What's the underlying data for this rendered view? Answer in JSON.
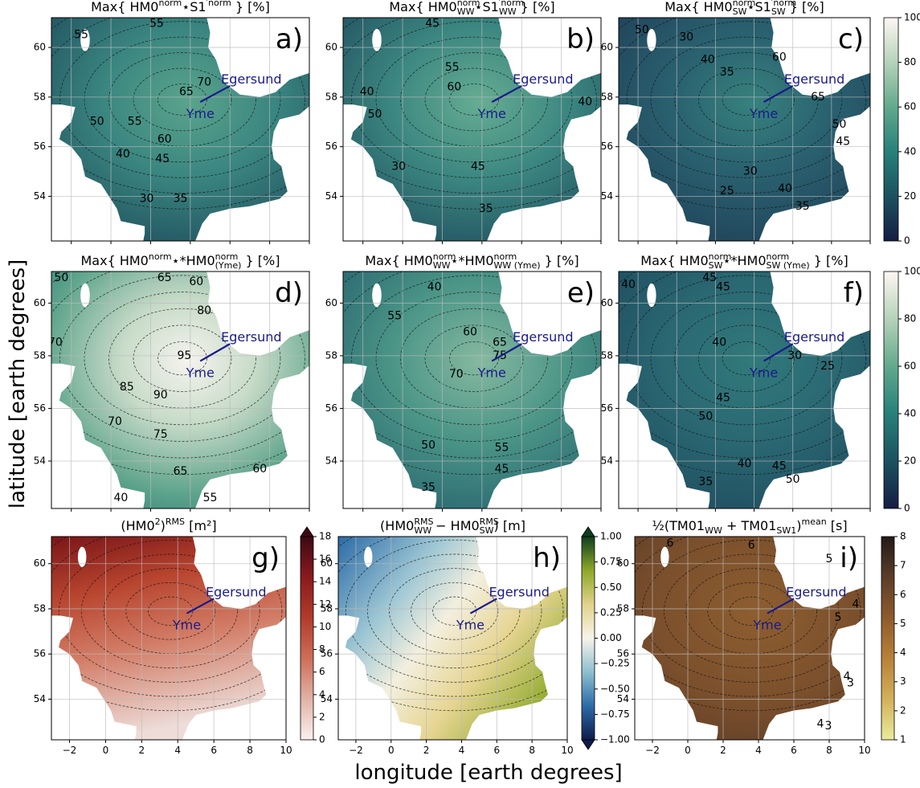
{
  "figure": {
    "xlabel": "longitude [earth degrees]",
    "ylabel": "latitude [earth degrees]",
    "xlim": [
      -3,
      10
    ],
    "ylim": [
      52.2,
      61.2
    ],
    "xticks": [
      {
        "value": -2,
        "label": "−2"
      },
      0,
      2,
      4,
      6,
      8,
      10
    ],
    "yticks": [
      54,
      56,
      58,
      60
    ],
    "grid": true,
    "sites": [
      "Egersund",
      "Yme"
    ],
    "panels": [
      {
        "label": "a)",
        "title": [
          {
            "text": "Max{ HM0"
          },
          {
            "text": "norm",
            "shift": "sup"
          },
          {
            "text": "⋆S1"
          },
          {
            "text": "′norm",
            "shift": "sup"
          },
          {
            "text": " } [%]"
          }
        ],
        "contour_labels": [
          55,
          55,
          65,
          70,
          50,
          55,
          60,
          45,
          40,
          35,
          30
        ]
      },
      {
        "label": "b)",
        "title": [
          {
            "text": "Max{ HM0"
          },
          {
            "text": "norm",
            "shift": "sup"
          },
          {
            "text": "WW",
            "shift": "sub"
          },
          {
            "text": "⋆S1"
          },
          {
            "text": "′norm",
            "shift": "sup"
          },
          {
            "text": "WW",
            "shift": "sub"
          },
          {
            "text": " } [%]"
          }
        ],
        "contour_labels": [
          45,
          55,
          60,
          40,
          50,
          45,
          35,
          30,
          40
        ]
      },
      {
        "label": "c)",
        "title": [
          {
            "text": "Max{ HM0"
          },
          {
            "text": "norm",
            "shift": "sup"
          },
          {
            "text": "SW",
            "shift": "sub"
          },
          {
            "text": "⋆S1"
          },
          {
            "text": "′norm",
            "shift": "sup"
          },
          {
            "text": "SW",
            "shift": "sub"
          },
          {
            "text": " } [%]"
          }
        ],
        "contour_labels": [
          50,
          30,
          40,
          35,
          60,
          65,
          50,
          45,
          30,
          25,
          40,
          35
        ]
      },
      {
        "label": "d)",
        "title": [
          {
            "text": "Max{ HM0"
          },
          {
            "text": "norm",
            "shift": "sup"
          },
          {
            "text": "⋆*HM0"
          },
          {
            "text": "norm",
            "shift": "sup"
          },
          {
            "text": "(Yme)",
            "shift": "sub"
          },
          {
            "text": " } [%]"
          }
        ],
        "contour_labels": [
          50,
          65,
          60,
          80,
          95,
          70,
          85,
          90,
          70,
          75,
          65,
          60,
          55,
          40
        ]
      },
      {
        "label": "e)",
        "title": [
          {
            "text": "Max{ HM0"
          },
          {
            "text": "norm",
            "shift": "sup"
          },
          {
            "text": "WW",
            "shift": "sub"
          },
          {
            "text": "⋆*HM0"
          },
          {
            "text": "norm",
            "shift": "sup"
          },
          {
            "text": "WW (Yme)",
            "shift": "sub"
          },
          {
            "text": " } [%]"
          }
        ],
        "contour_labels": [
          40,
          55,
          60,
          65,
          75,
          70,
          50,
          55,
          45,
          35
        ]
      },
      {
        "label": "f)",
        "title": [
          {
            "text": "Max{ HM0"
          },
          {
            "text": "norm",
            "shift": "sup"
          },
          {
            "text": "SW",
            "shift": "sub"
          },
          {
            "text": "⋆*HM0"
          },
          {
            "text": "norm",
            "shift": "sup"
          },
          {
            "text": "SW (Yme)",
            "shift": "sub"
          },
          {
            "text": " } [%]"
          }
        ],
        "contour_labels": [
          40,
          45,
          45,
          40,
          30,
          25,
          45,
          50,
          40,
          35,
          45,
          50
        ]
      },
      {
        "label": "g)",
        "title": [
          {
            "text": "(HM0"
          },
          {
            "text": "2",
            "shift": "sup"
          },
          {
            "text": ")"
          },
          {
            "text": "RMS",
            "shift": "sup"
          },
          {
            "text": " [m²]"
          }
        ],
        "contour_labels": []
      },
      {
        "label": "h)",
        "title": [
          {
            "text": "(HM0"
          },
          {
            "text": "RMS",
            "shift": "sup"
          },
          {
            "text": "WW",
            "shift": "sub"
          },
          {
            "text": " − HM0"
          },
          {
            "text": "RMS",
            "shift": "sup"
          },
          {
            "text": "SW",
            "shift": "sub"
          },
          {
            "text": ") [m]"
          }
        ],
        "contour_labels": []
      },
      {
        "label": "i)",
        "title": [
          {
            "text": "½(TM01"
          },
          {
            "text": "WW",
            "shift": "sub"
          },
          {
            "text": " + TM01"
          },
          {
            "text": "SW1",
            "shift": "sub"
          },
          {
            "text": ")"
          },
          {
            "text": "mean",
            "shift": "sup"
          },
          {
            "text": " [s]"
          }
        ],
        "contour_labels": [
          6,
          6,
          5,
          4,
          5,
          4,
          3,
          4,
          3
        ]
      }
    ],
    "colorbars": [
      {
        "lim": [
          0,
          100
        ],
        "ticks": [
          0,
          20,
          40,
          60,
          80,
          100
        ],
        "colors": [
          "#151d44",
          "#1c5160",
          "#27807a",
          "#62a98d",
          "#b6d3b9",
          "#fff6f4"
        ]
      },
      {
        "lim": [
          0,
          100
        ],
        "ticks": [
          0,
          20,
          40,
          60,
          80,
          100
        ],
        "colors": [
          "#151d44",
          "#1c5160",
          "#27807a",
          "#62a98d",
          "#b6d3b9",
          "#fff6f4"
        ]
      },
      {
        "lim": [
          0,
          18
        ],
        "ticks": [
          0,
          2,
          4,
          6,
          8,
          10,
          12,
          14,
          16,
          18
        ],
        "extend": "max",
        "colors": [
          "#fbf1ee",
          "#e2b2a6",
          "#cd6f58",
          "#b23b2a",
          "#8a1a1e",
          "#3c0912"
        ]
      },
      {
        "lim": [
          -1,
          1
        ],
        "ticks": [
          {
            "value": -1,
            "label": "−1.00"
          },
          {
            "value": -0.75,
            "label": "−0.75"
          },
          {
            "value": -0.5,
            "label": "−0.50"
          },
          {
            "value": -0.25,
            "label": "−0.25"
          },
          {
            "value": 0,
            "label": "0.00"
          },
          {
            "value": 0.25,
            "label": "0.25"
          },
          {
            "value": 0.5,
            "label": "0.50"
          },
          {
            "value": 0.75,
            "label": "0.75"
          },
          {
            "value": 1,
            "label": "1.00"
          }
        ],
        "extend": "both",
        "colors": [
          "#0d1c4c",
          "#2c6ba8",
          "#8dc0cf",
          "#f7f3ea",
          "#e2d28a",
          "#8da82a",
          "#0f3e1e"
        ]
      },
      {
        "lim": [
          1,
          8
        ],
        "ticks": [
          1,
          2,
          3,
          4,
          5,
          6,
          7,
          8
        ],
        "colors": [
          "#e8ec9c",
          "#d3b05a",
          "#b88139",
          "#8e5b2d",
          "#5c3d28",
          "#231a18"
        ]
      }
    ]
  }
}
